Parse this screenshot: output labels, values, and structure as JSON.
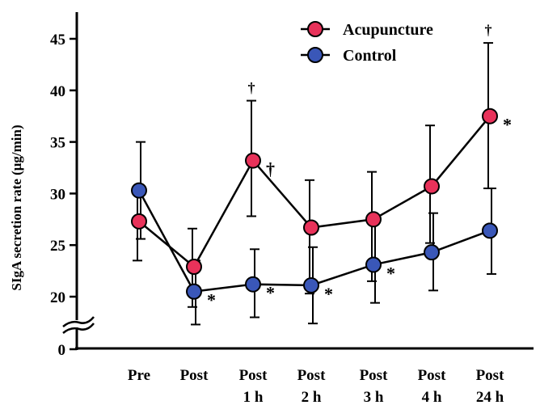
{
  "chart_data": {
    "type": "line",
    "ylabel": "SIgA secretion rate (μg/min)",
    "y_ticks": [
      "0",
      "20",
      "25",
      "30",
      "35",
      "40",
      "45"
    ],
    "y_axis_break": true,
    "categories": [
      {
        "line1": "Pre",
        "line2": ""
      },
      {
        "line1": "Post",
        "line2": ""
      },
      {
        "line1": "Post",
        "line2": "1 h"
      },
      {
        "line1": "Post",
        "line2": "2 h"
      },
      {
        "line1": "Post",
        "line2": "3 h"
      },
      {
        "line1": "Post",
        "line2": "4 h"
      },
      {
        "line1": "Post",
        "line2": "24 h"
      }
    ],
    "legend_position": "top-right",
    "series": [
      {
        "name": "Acupuncture",
        "color": "#e8325a",
        "values": [
          27.3,
          22.9,
          33.2,
          26.7,
          27.5,
          30.7,
          37.5
        ],
        "err_upper": [
          30.5,
          26.6,
          39.0,
          31.3,
          32.1,
          36.6,
          44.6
        ],
        "err_lower": [
          23.5,
          19.0,
          27.8,
          20.3,
          21.5,
          25.2,
          30.5
        ],
        "marks": [
          "",
          "",
          "†",
          "",
          "",
          "",
          "*"
        ]
      },
      {
        "name": "Control",
        "color": "#3a57b8",
        "values": [
          30.3,
          20.5,
          21.2,
          21.1,
          23.1,
          24.3,
          26.4
        ],
        "err_upper": [
          35.0,
          23.5,
          24.6,
          24.8,
          27.3,
          28.1,
          30.5
        ],
        "err_lower": [
          25.6,
          17.3,
          18.0,
          17.4,
          19.4,
          20.6,
          22.2
        ],
        "marks": [
          "",
          "*",
          "*",
          "*",
          "*",
          "",
          ""
        ]
      }
    ],
    "significance_marks_above_errorbars": [
      "",
      "",
      "†",
      "",
      "",
      "",
      "†"
    ]
  }
}
